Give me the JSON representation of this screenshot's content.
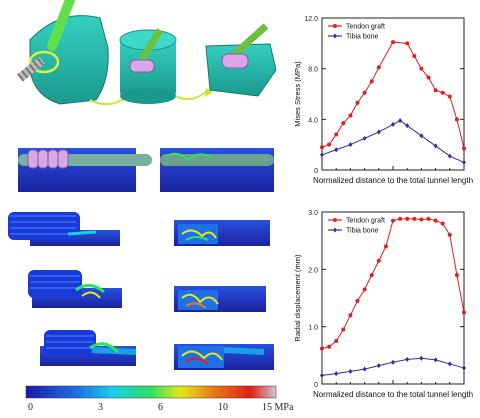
{
  "colorbar": {
    "labels": [
      "0",
      "3",
      "6",
      "10",
      "15 MPa"
    ],
    "colors": [
      "#1a1aa8",
      "#1f6fe6",
      "#19d0e6",
      "#30e060",
      "#e6e61a",
      "#e67a1a",
      "#e0201a",
      "#cccccc"
    ]
  },
  "model_colors": {
    "bone": "#2bbfb0",
    "graft": "#3d8a3a",
    "screw": "#d9a6e8",
    "block": "#2030c8"
  },
  "chart_data": [
    {
      "type": "line",
      "xlabel": "Normalized distance to the total tunnel length",
      "ylabel": "Mises Stress (MPa)",
      "xlim": [
        0,
        1
      ],
      "ylim": [
        0,
        12
      ],
      "yticks": [
        "0",
        "4.0",
        "8.0",
        "12.0"
      ],
      "legend_position": "top-left",
      "series": [
        {
          "name": "Tendon graft",
          "color": "#e02020",
          "x": [
            0.0,
            0.05,
            0.1,
            0.15,
            0.2,
            0.25,
            0.3,
            0.35,
            0.4,
            0.5,
            0.6,
            0.65,
            0.7,
            0.75,
            0.8,
            0.85,
            0.9,
            0.95,
            1.0
          ],
          "y": [
            1.8,
            2.0,
            2.8,
            3.7,
            4.3,
            5.3,
            6.1,
            7.0,
            8.1,
            10.1,
            10.0,
            9.0,
            8.0,
            7.3,
            6.3,
            6.1,
            5.8,
            4.0,
            1.7
          ]
        },
        {
          "name": "Tibia bone",
          "color": "#3030a0",
          "x": [
            0.0,
            0.1,
            0.2,
            0.3,
            0.4,
            0.5,
            0.55,
            0.6,
            0.7,
            0.8,
            0.9,
            1.0
          ],
          "y": [
            1.2,
            1.6,
            2.0,
            2.5,
            3.0,
            3.6,
            3.9,
            3.5,
            2.7,
            1.9,
            1.1,
            0.6
          ]
        }
      ]
    },
    {
      "type": "line",
      "xlabel": "Normalized distance to the total tunnel length",
      "ylabel": "Radial displacement (mm)",
      "xlim": [
        0,
        1
      ],
      "ylim": [
        0,
        3
      ],
      "yticks": [
        "0",
        "1.0",
        "2.0",
        "3.0"
      ],
      "legend_position": "top-left",
      "series": [
        {
          "name": "Tendon graft",
          "color": "#e02020",
          "x": [
            0.0,
            0.05,
            0.1,
            0.15,
            0.2,
            0.25,
            0.3,
            0.35,
            0.4,
            0.45,
            0.5,
            0.55,
            0.6,
            0.65,
            0.7,
            0.75,
            0.8,
            0.85,
            0.9,
            0.95,
            1.0
          ],
          "y": [
            0.62,
            0.65,
            0.75,
            0.95,
            1.2,
            1.45,
            1.65,
            1.9,
            2.15,
            2.4,
            2.85,
            2.88,
            2.88,
            2.88,
            2.87,
            2.88,
            2.85,
            2.8,
            2.6,
            1.9,
            1.25
          ]
        },
        {
          "name": "Tibia bone",
          "color": "#3030a0",
          "x": [
            0.0,
            0.1,
            0.2,
            0.3,
            0.4,
            0.5,
            0.6,
            0.7,
            0.8,
            0.9,
            1.0
          ],
          "y": [
            0.15,
            0.18,
            0.22,
            0.26,
            0.32,
            0.38,
            0.43,
            0.45,
            0.42,
            0.35,
            0.28
          ]
        }
      ]
    }
  ]
}
